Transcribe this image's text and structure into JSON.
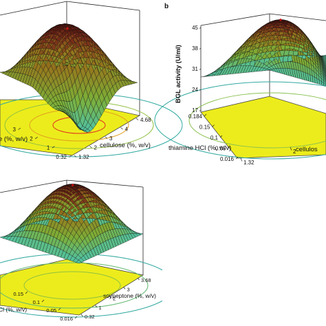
{
  "chart_data": [
    {
      "type": "surface3d",
      "panel_label": "",
      "xlabel": "cellulose (%, w/v)",
      "ylabel": "e (%, w/v)",
      "zlabel": "",
      "x_ticks": [
        "1.32",
        "2",
        "3",
        "4",
        "4.68"
      ],
      "y_ticks": [
        "0.32",
        "1",
        "2",
        "3"
      ],
      "z_ticks": [],
      "contour_levels": 4
    },
    {
      "type": "surface3d",
      "panel_label": "b",
      "xlabel": "cellulos",
      "ylabel": "thiamine HCl (%, w/v)",
      "zlabel": "BGL activity (U/ml)",
      "x_ticks": [
        "1.32",
        "2"
      ],
      "y_ticks": [
        "0.016",
        "0.05",
        "0.1",
        "0.15",
        "0.184"
      ],
      "z_ticks": [
        "17",
        "24",
        "31",
        "38",
        "45"
      ],
      "contour_levels": 2
    },
    {
      "type": "surface3d",
      "panel_label": "",
      "xlabel": "soypeptone (%, w/v)",
      "ylabel": "Cl (%, w/v)",
      "zlabel": "",
      "x_ticks": [
        "0.32",
        "1",
        "2",
        "3",
        "3.68"
      ],
      "y_ticks": [
        "0.016",
        "0.05",
        "0.1",
        "0.15"
      ],
      "z_ticks": [],
      "contour_levels": 3
    }
  ]
}
